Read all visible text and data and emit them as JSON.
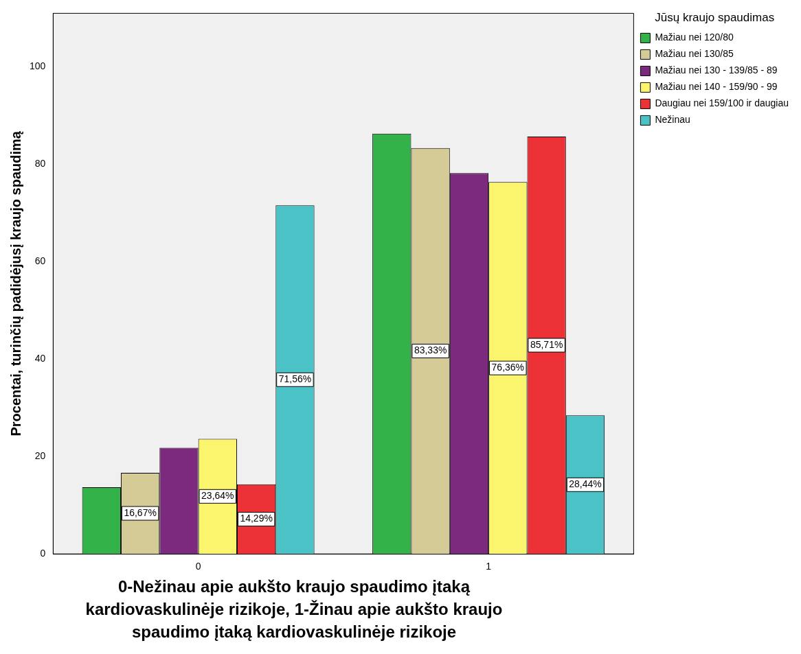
{
  "chart_data": {
    "type": "bar",
    "categories": [
      "0",
      "1"
    ],
    "ylabel": "Procentai, turinčių padidėjusį kraujo spaudimą",
    "xlabel": "0-Nežinau apie aukšto kraujo spaudimo įtaką kardiovaskulinėje rizikoje, 1-Žinau apie aukšto kraujo spaudimo įtaką kardiovaskulinėje rizikoje",
    "legend_title": "Jūsų kraujo spaudimas",
    "legend": "right",
    "grid": false,
    "ylim": [
      0,
      111
    ],
    "yticks": [
      0,
      20,
      40,
      60,
      80,
      100
    ],
    "series": [
      {
        "name": "Mažiau nei 120/80",
        "color": "#33b24a",
        "values": [
          13.7,
          86.3
        ]
      },
      {
        "name": "Mažiau nei 130/85",
        "color": "#d4cb97",
        "values": [
          16.67,
          83.33
        ],
        "value_labels": [
          "16,67%",
          "83,33%"
        ]
      },
      {
        "name": "Mažiau nei 130 - 139/85 - 89",
        "color": "#7b2a7d",
        "values": [
          21.8,
          78.2
        ]
      },
      {
        "name": "Mažiau nei 140 - 159/90 - 99",
        "color": "#fbf56e",
        "values": [
          23.64,
          76.36
        ],
        "value_labels": [
          "23,64%",
          "76,36%"
        ]
      },
      {
        "name": "Daugiau nei 159/100 ir daugiau",
        "color": "#ec3237",
        "values": [
          14.29,
          85.71
        ],
        "value_labels": [
          "14,29%",
          "85,71%"
        ]
      },
      {
        "name": "Nežinau",
        "color": "#4bc3c6",
        "values": [
          71.56,
          28.44
        ],
        "value_labels": [
          "71,56%",
          "28,44%"
        ]
      }
    ]
  }
}
